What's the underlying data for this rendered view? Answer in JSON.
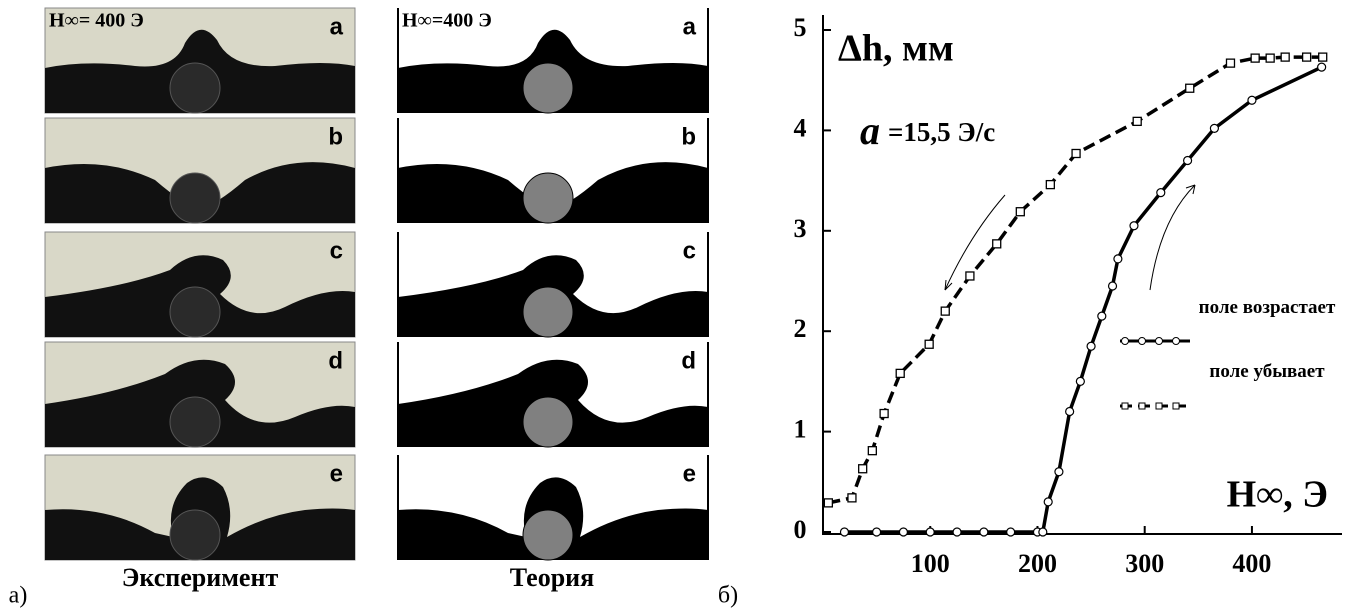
{
  "figure": {
    "label_a": "а)",
    "label_b": "б)",
    "experiment": {
      "title": "Эксперимент",
      "field": "H∞= 400 Э",
      "panels": [
        "a",
        "b",
        "c",
        "d",
        "e"
      ]
    },
    "theory": {
      "title": "Теория",
      "field": "H∞=400 Э",
      "panels": [
        "a",
        "b",
        "c",
        "d",
        "e"
      ]
    }
  },
  "chart_data": {
    "type": "line",
    "y_label": "Δh, мм",
    "x_label": "H∞, Э",
    "rate_symbol": "a",
    "rate_value": "=15,5 Э/с",
    "xlim": [
      0,
      470
    ],
    "ylim": [
      0,
      5
    ],
    "xticks": [
      100,
      200,
      300,
      400
    ],
    "yticks": [
      0,
      1,
      2,
      3,
      4,
      5
    ],
    "series": [
      {
        "name": "поле возрастает",
        "color": "#000000",
        "line_style": "solid",
        "marker": "circle",
        "x": [
          20,
          50,
          75,
          100,
          125,
          150,
          175,
          200,
          205,
          210,
          220,
          230,
          240,
          250,
          260,
          270,
          275,
          290,
          315,
          340,
          365,
          400,
          465
        ],
        "values": [
          0,
          0,
          0,
          0,
          0,
          0,
          0,
          0,
          0,
          0.3,
          0.6,
          1.2,
          1.5,
          1.85,
          2.15,
          2.45,
          2.72,
          3.05,
          3.38,
          3.7,
          4.02,
          4.3,
          4.63
        ]
      },
      {
        "name": "поле убывает",
        "color": "#000000",
        "line_style": "dashed",
        "marker": "square",
        "x": [
          5,
          27,
          37,
          46,
          57,
          72,
          99,
          114,
          137,
          162,
          184,
          212,
          236,
          293,
          342,
          380,
          403,
          417,
          431,
          451,
          466
        ],
        "values": [
          0.29,
          0.34,
          0.63,
          0.81,
          1.18,
          1.58,
          1.87,
          2.2,
          2.55,
          2.87,
          3.19,
          3.46,
          3.77,
          4.09,
          4.42,
          4.67,
          4.72,
          4.72,
          4.73,
          4.73,
          4.73
        ]
      }
    ]
  }
}
